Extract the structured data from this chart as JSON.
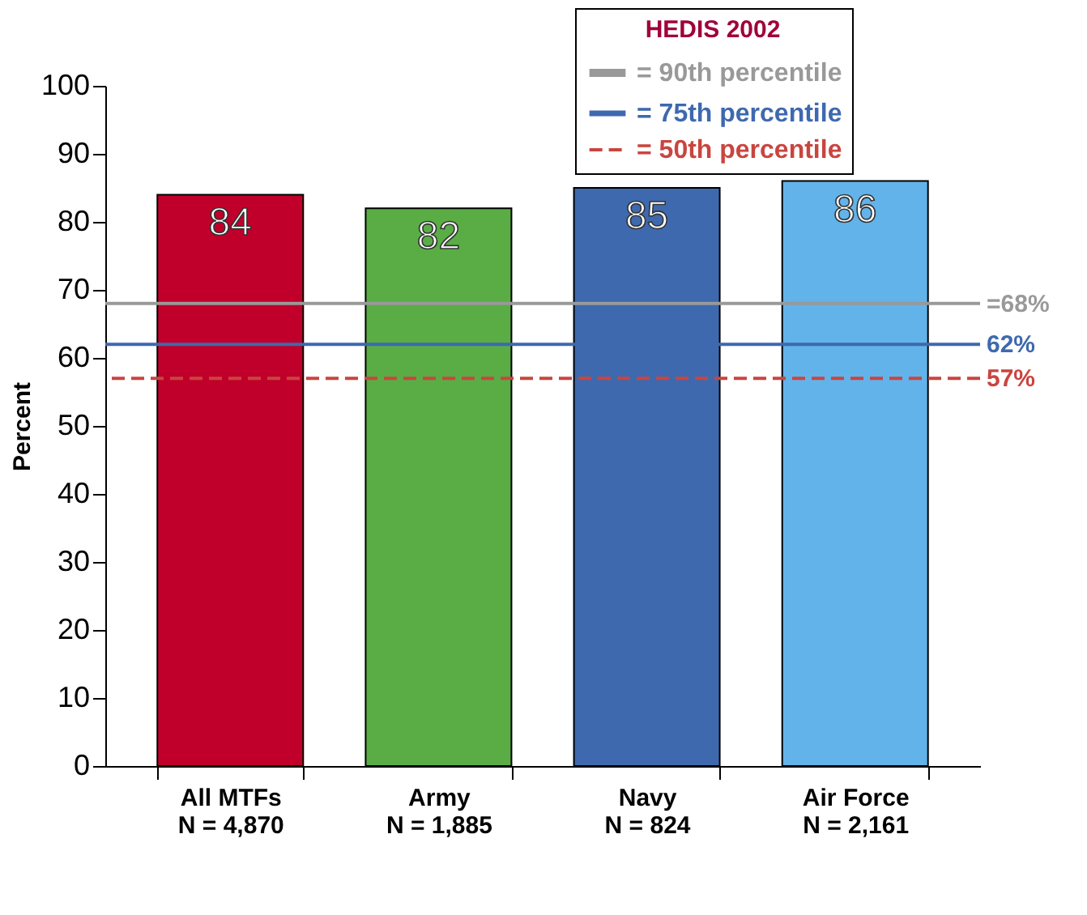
{
  "chart_data": {
    "type": "bar",
    "ylabel": "Percent",
    "legend_title": "HEDIS 2002",
    "categories": [
      "All MTFs\nN = 4,870",
      "Army\nN = 1,885",
      "Navy\nN = 824",
      "Air Force\nN = 2,161"
    ],
    "values": [
      84,
      82,
      85,
      86
    ],
    "colors": [
      "#c0002a",
      "#5aad45",
      "#3e69ae",
      "#62b3ea"
    ],
    "ylim": [
      0,
      100
    ],
    "yticks": [
      0,
      10,
      20,
      30,
      40,
      50,
      60,
      70,
      80,
      90,
      100
    ],
    "data_labels": true,
    "grid": false,
    "legend": "top right",
    "ref_lines": [
      {
        "axis": "y",
        "value": 68,
        "label": "=68%",
        "color": "#999999",
        "line_style": "solid"
      },
      {
        "axis": "y",
        "value": 62,
        "label": "62%",
        "color": "#3e69ae",
        "line_style": "solid"
      },
      {
        "axis": "y",
        "value": 57,
        "label": "57%",
        "color": "#c9453f",
        "line_style": "dashed"
      }
    ],
    "annotations": [
      "= 90th percentile",
      "= 75th percentile",
      "= 50th percentile"
    ]
  }
}
